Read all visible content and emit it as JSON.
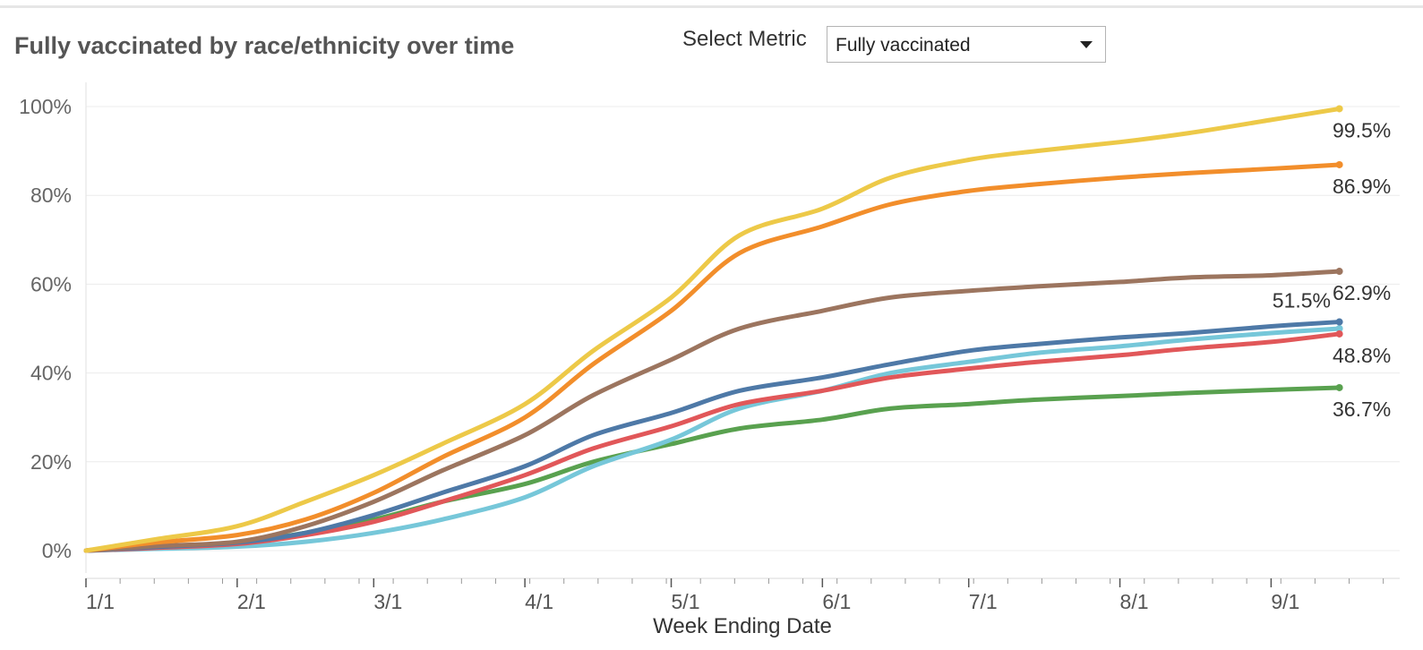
{
  "header": {
    "title": "Fully vaccinated by race/ethnicity over time",
    "metric_label": "Select Metric",
    "metric_value": "Fully vaccinated"
  },
  "chart_data": {
    "type": "line",
    "title": "Fully vaccinated by race/ethnicity over time",
    "xlabel": "Week Ending Date",
    "ylabel": "",
    "ylim": [
      0,
      100
    ],
    "yticks": [
      0,
      20,
      40,
      60,
      80,
      100
    ],
    "ytick_labels": [
      "0%",
      "20%",
      "40%",
      "60%",
      "80%",
      "100%"
    ],
    "xticks": [
      "1/1",
      "2/1",
      "3/1",
      "4/1",
      "5/1",
      "6/1",
      "7/1",
      "8/1",
      "9/1"
    ],
    "x_minor_ticks": "weekly",
    "grid": "horizontal",
    "legend": "none",
    "x": [
      "2021-01-01",
      "2021-01-15",
      "2021-02-01",
      "2021-02-15",
      "2021-03-01",
      "2021-03-15",
      "2021-04-01",
      "2021-04-15",
      "2021-05-01",
      "2021-05-15",
      "2021-06-01",
      "2021-06-15",
      "2021-07-01",
      "2021-07-15",
      "2021-08-01",
      "2021-08-15",
      "2021-09-01",
      "2021-09-15"
    ],
    "series": [
      {
        "color": "#edc948",
        "end_label": "99.5%",
        "values": [
          0,
          2.5,
          5.5,
          11,
          17,
          24,
          33,
          45,
          57,
          71,
          77,
          84,
          88,
          90,
          92,
          94,
          97,
          99.5
        ]
      },
      {
        "color": "#f28e2b",
        "end_label": "86.9%",
        "values": [
          0,
          1.8,
          3.5,
          7,
          13,
          21,
          30,
          42,
          54,
          67,
          73,
          78,
          81,
          82.5,
          84,
          85,
          86,
          86.9
        ]
      },
      {
        "color": "#9c755f",
        "end_label": "62.9%",
        "values": [
          0,
          1,
          2,
          5.5,
          11,
          18,
          26,
          35,
          43,
          50,
          54,
          57,
          58.5,
          59.5,
          60.5,
          61.5,
          62,
          62.9
        ]
      },
      {
        "color": "#4e79a7",
        "end_label": "51.5%",
        "values": [
          0,
          0.8,
          1.8,
          4,
          8,
          13,
          19,
          26,
          31,
          36,
          39,
          42,
          45,
          46.5,
          48,
          49,
          50.5,
          51.5
        ]
      },
      {
        "color": "#76c7d9",
        "end_label": "",
        "values": [
          0,
          0.4,
          0.9,
          2,
          4,
          7,
          12,
          19,
          25,
          32,
          36,
          40,
          42.5,
          44.5,
          46,
          47.5,
          49,
          50
        ]
      },
      {
        "color": "#e15759",
        "end_label": "48.8%",
        "values": [
          0,
          0.6,
          1.5,
          3.5,
          6.5,
          11,
          17,
          23,
          28,
          33,
          36,
          39,
          41,
          42.5,
          44,
          45.5,
          47,
          48.8
        ]
      },
      {
        "color": "#59a14f",
        "end_label": "36.7%",
        "values": [
          0,
          0.7,
          1.8,
          4,
          7,
          11,
          15,
          20,
          24,
          27.5,
          29.5,
          32,
          33,
          34,
          34.8,
          35.5,
          36.2,
          36.7
        ]
      }
    ]
  }
}
